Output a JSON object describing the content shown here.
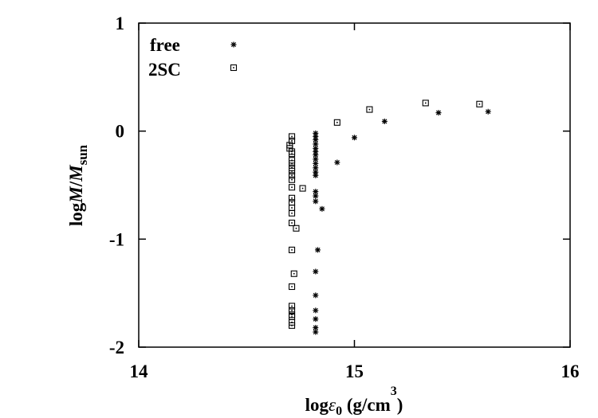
{
  "chart_data": {
    "type": "scatter",
    "xlabel": {
      "prefix": "log",
      "epsilon": "ε",
      "sub": "0",
      "unit": " (g/cm",
      "sup": "3",
      "close": ")"
    },
    "ylabel": {
      "prefix": "log",
      "M": "M",
      "slash": "/",
      "M2": "M",
      "sub": "sun"
    },
    "x_ticks": [
      {
        "value": 14,
        "label": "14"
      },
      {
        "value": 15,
        "label": "15"
      },
      {
        "value": 16,
        "label": "16"
      }
    ],
    "y_ticks": [
      {
        "value": 1,
        "label": "1"
      },
      {
        "value": 0,
        "label": "0"
      },
      {
        "value": -1,
        "label": "-1"
      },
      {
        "value": -2,
        "label": "-2"
      }
    ],
    "xlim": [
      14,
      16
    ],
    "ylim": [
      -2,
      1
    ],
    "grid": false,
    "legend_position": "top-left",
    "series": [
      {
        "name": "free",
        "marker": "star",
        "points": [
          [
            14.82,
            -0.02
          ],
          [
            14.82,
            -0.05
          ],
          [
            14.82,
            -0.08
          ],
          [
            14.82,
            -0.12
          ],
          [
            14.82,
            -0.16
          ],
          [
            14.82,
            -0.19
          ],
          [
            14.82,
            -0.22
          ],
          [
            14.82,
            -0.26
          ],
          [
            14.82,
            -0.3
          ],
          [
            14.82,
            -0.34
          ],
          [
            14.82,
            -0.38
          ],
          [
            14.82,
            -0.41
          ],
          [
            14.82,
            -0.56
          ],
          [
            14.82,
            -0.6
          ],
          [
            14.82,
            -0.65
          ],
          [
            14.85,
            -0.72
          ],
          [
            14.83,
            -1.1
          ],
          [
            14.82,
            -1.3
          ],
          [
            14.82,
            -1.52
          ],
          [
            14.82,
            -1.66
          ],
          [
            14.82,
            -1.74
          ],
          [
            14.82,
            -1.82
          ],
          [
            14.82,
            -1.86
          ],
          [
            14.92,
            -0.29
          ],
          [
            15.0,
            -0.06
          ],
          [
            15.14,
            0.09
          ],
          [
            15.39,
            0.17
          ],
          [
            15.62,
            0.18
          ]
        ]
      },
      {
        "name": "2SC",
        "marker": "square",
        "points": [
          [
            14.71,
            -0.05
          ],
          [
            14.71,
            -0.09
          ],
          [
            14.7,
            -0.13
          ],
          [
            14.7,
            -0.16
          ],
          [
            14.71,
            -0.19
          ],
          [
            14.71,
            -0.21
          ],
          [
            14.71,
            -0.27
          ],
          [
            14.71,
            -0.3
          ],
          [
            14.71,
            -0.34
          ],
          [
            14.71,
            -0.37
          ],
          [
            14.71,
            -0.41
          ],
          [
            14.71,
            -0.45
          ],
          [
            14.71,
            -0.52
          ],
          [
            14.71,
            -0.62
          ],
          [
            14.71,
            -0.66
          ],
          [
            14.71,
            -0.71
          ],
          [
            14.71,
            -0.76
          ],
          [
            14.71,
            -0.85
          ],
          [
            14.73,
            -0.9
          ],
          [
            14.76,
            -0.53
          ],
          [
            14.71,
            -1.1
          ],
          [
            14.72,
            -1.32
          ],
          [
            14.71,
            -1.44
          ],
          [
            14.71,
            -1.62
          ],
          [
            14.71,
            -1.66
          ],
          [
            14.71,
            -1.7
          ],
          [
            14.71,
            -1.72
          ],
          [
            14.71,
            -1.77
          ],
          [
            14.71,
            -1.8
          ],
          [
            14.92,
            0.08
          ],
          [
            15.07,
            0.2
          ],
          [
            15.33,
            0.26
          ],
          [
            15.58,
            0.25
          ]
        ]
      }
    ]
  }
}
